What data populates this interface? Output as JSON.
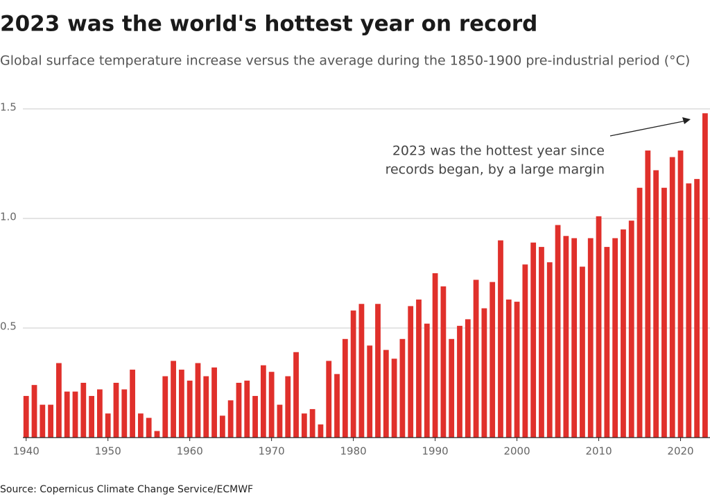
{
  "chart_data": {
    "type": "bar",
    "title": "2023 was the world's hottest year on record",
    "subtitle": "Global surface temperature increase versus the average during the 1850-1900 pre-industrial period (°C)",
    "source": "Source: Copernicus Climate Change Service/ECMWF",
    "annotation": [
      "2023 was the hottest year since",
      "records began, by a large margin"
    ],
    "color": "#e0302b",
    "grid": true,
    "x": [
      1940,
      1941,
      1942,
      1943,
      1944,
      1945,
      1946,
      1947,
      1948,
      1949,
      1950,
      1951,
      1952,
      1953,
      1954,
      1955,
      1956,
      1957,
      1958,
      1959,
      1960,
      1961,
      1962,
      1963,
      1964,
      1965,
      1966,
      1967,
      1968,
      1969,
      1970,
      1971,
      1972,
      1973,
      1974,
      1975,
      1976,
      1977,
      1978,
      1979,
      1980,
      1981,
      1982,
      1983,
      1984,
      1985,
      1986,
      1987,
      1988,
      1989,
      1990,
      1991,
      1992,
      1993,
      1994,
      1995,
      1996,
      1997,
      1998,
      1999,
      2000,
      2001,
      2002,
      2003,
      2004,
      2005,
      2006,
      2007,
      2008,
      2009,
      2010,
      2011,
      2012,
      2013,
      2014,
      2015,
      2016,
      2017,
      2018,
      2019,
      2020,
      2021,
      2022,
      2023
    ],
    "values": [
      0.19,
      0.24,
      0.15,
      0.15,
      0.34,
      0.21,
      0.21,
      0.25,
      0.19,
      0.22,
      0.11,
      0.25,
      0.22,
      0.31,
      0.11,
      0.09,
      0.03,
      0.28,
      0.35,
      0.31,
      0.26,
      0.34,
      0.28,
      0.32,
      0.1,
      0.17,
      0.25,
      0.26,
      0.19,
      0.33,
      0.3,
      0.15,
      0.28,
      0.39,
      0.11,
      0.13,
      0.06,
      0.35,
      0.29,
      0.45,
      0.58,
      0.61,
      0.42,
      0.61,
      0.4,
      0.36,
      0.45,
      0.6,
      0.63,
      0.52,
      0.75,
      0.69,
      0.45,
      0.51,
      0.54,
      0.72,
      0.59,
      0.71,
      0.9,
      0.63,
      0.62,
      0.79,
      0.89,
      0.87,
      0.8,
      0.97,
      0.92,
      0.91,
      0.78,
      0.91,
      1.01,
      0.87,
      0.91,
      0.95,
      0.99,
      1.14,
      1.31,
      1.22,
      1.14,
      1.28,
      1.31,
      1.16,
      1.18,
      1.48
    ],
    "xlim": [
      1939.6,
      2023.6
    ],
    "xticks": [
      1940,
      1950,
      1960,
      1970,
      1980,
      1990,
      2000,
      2010,
      2020
    ],
    "ylim": [
      0,
      1.5
    ],
    "yticks": [
      0.5,
      {
        "value": 1.0,
        "label": "1.0"
      },
      1.5
    ]
  }
}
